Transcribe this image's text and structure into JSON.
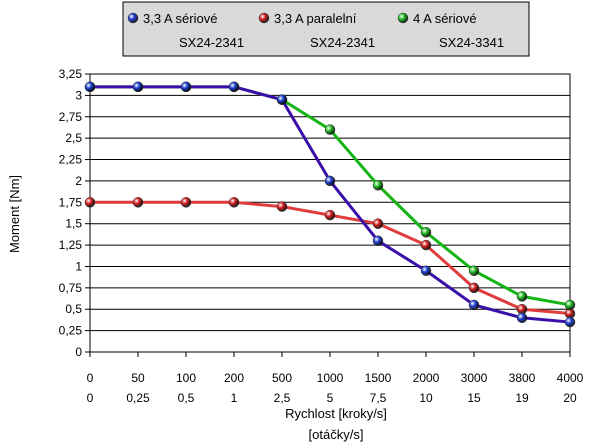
{
  "chart_data": {
    "type": "line",
    "x_labels_line1": [
      "0",
      "50",
      "100",
      "200",
      "500",
      "1000",
      "1500",
      "2000",
      "3000",
      "3800",
      "4000"
    ],
    "x_labels_line2": [
      "0",
      "0,25",
      "0,5",
      "1",
      "2,5",
      "5",
      "7,5",
      "10",
      "15",
      "19",
      "20"
    ],
    "xlabel_line1": "Rychlost [kroky/s]",
    "xlabel_line2": "[otáčky/s]",
    "ylabel": "Moment [Nm]",
    "ylim": [
      0,
      3.25
    ],
    "y_ticks": [
      "0",
      "0,25",
      "0,5",
      "0,75",
      "1",
      "1,25",
      "1,5",
      "1,75",
      "2",
      "2,25",
      "2,5",
      "2,75",
      "3",
      "3,25"
    ],
    "grid": true,
    "legend_position": "top",
    "series": [
      {
        "name": "3,3 A sériové",
        "name_line2": "SX24-2341",
        "color": "#3a0ea8",
        "marker_color": "#1f3fd6",
        "values": [
          3.1,
          3.1,
          3.1,
          3.1,
          2.95,
          2.0,
          1.3,
          0.95,
          0.55,
          0.4,
          0.35
        ]
      },
      {
        "name": "3,3 A paralelní",
        "name_line2": "SX24-2341",
        "color": "#e03c3c",
        "marker_color": "#d81e1e",
        "values": [
          1.75,
          1.75,
          1.75,
          1.75,
          1.7,
          1.6,
          1.5,
          1.25,
          0.75,
          0.5,
          0.45
        ]
      },
      {
        "name": "4 A sériové",
        "name_line2": "SX24-3341",
        "color": "#14b414",
        "marker_color": "#22c022",
        "values": [
          3.1,
          3.1,
          3.1,
          3.1,
          2.95,
          2.6,
          1.95,
          1.4,
          0.95,
          0.65,
          0.55
        ]
      }
    ]
  }
}
